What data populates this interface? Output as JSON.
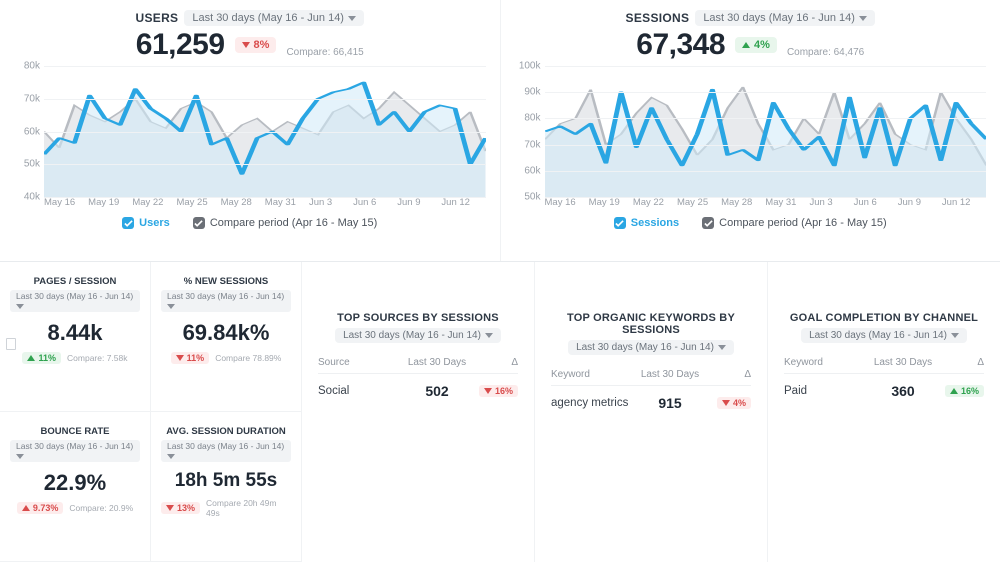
{
  "colors": {
    "primary": "#2aa6e3",
    "primary_fill": "#cfe9f7",
    "compare": "#b8bcc2",
    "compare_fill": "#e6e8eb",
    "grid": "#f0f2f4",
    "text_muted": "#9aa0a8",
    "pos": "#2fa24f",
    "neg": "#d94c4c"
  },
  "range_label": "Last 30 days (May 16 - Jun 14)",
  "compare_period_label": "Compare period (Apr 16 - May 15)",
  "charts": {
    "users": {
      "title": "USERS",
      "value": "61,259",
      "delta_pct": "8%",
      "delta_dir": "down",
      "compare_label": "Compare: 66,415",
      "legend_primary": "Users",
      "y_ticks": [
        "40k",
        "50k",
        "60k",
        "70k",
        "80k"
      ],
      "y_min": 40000,
      "y_max": 80000,
      "x_ticks": [
        "May 16",
        "May 19",
        "May 22",
        "May 25",
        "May 28",
        "May 31",
        "Jun 3",
        "Jun 6",
        "Jun 9",
        "Jun 12"
      ],
      "primary_series": [
        53000,
        58000,
        56500,
        71000,
        64000,
        62000,
        73000,
        67000,
        64000,
        60000,
        71000,
        56000,
        58000,
        47000,
        58000,
        60000,
        56000,
        64000,
        70000,
        72000,
        73000,
        75000,
        62000,
        66000,
        60000,
        66000,
        68000,
        67000,
        50000,
        58000
      ],
      "compare_series": [
        60000,
        55000,
        68000,
        65000,
        63000,
        66000,
        70000,
        63000,
        61000,
        67000,
        69000,
        66000,
        58000,
        62000,
        64000,
        60000,
        63000,
        61000,
        59000,
        66000,
        68000,
        64000,
        67000,
        72000,
        68000,
        64000,
        60000,
        62000,
        66000,
        54000
      ]
    },
    "sessions": {
      "title": "SESSIONS",
      "value": "67,348",
      "delta_pct": "4%",
      "delta_dir": "up",
      "compare_label": "Compare: 64,476",
      "legend_primary": "Sessions",
      "y_ticks": [
        "50k",
        "60k",
        "70k",
        "80k",
        "90k",
        "100k"
      ],
      "y_min": 50000,
      "y_max": 100000,
      "x_ticks": [
        "May 16",
        "May 19",
        "May 22",
        "May 25",
        "May 28",
        "May 31",
        "Jun 3",
        "Jun 6",
        "Jun 9",
        "Jun 12"
      ],
      "primary_series": [
        75000,
        77000,
        74000,
        78000,
        63000,
        90000,
        69000,
        84000,
        72000,
        62000,
        74000,
        91000,
        66000,
        68000,
        64000,
        86000,
        76000,
        68000,
        73000,
        62000,
        88000,
        65000,
        84000,
        62000,
        80000,
        85000,
        64000,
        86000,
        78000,
        72000
      ],
      "compare_series": [
        72000,
        78000,
        80000,
        91000,
        70000,
        74000,
        82000,
        88000,
        85000,
        76000,
        66000,
        72000,
        84000,
        92000,
        78000,
        68000,
        70000,
        80000,
        74000,
        90000,
        72000,
        78000,
        86000,
        74000,
        70000,
        68000,
        90000,
        80000,
        72000,
        62000
      ]
    }
  },
  "small_cards": {
    "pages_per_session": {
      "title": "PAGES / SESSION",
      "range": "Last 30 days (May 16 - Jun 14)",
      "value": "8.44k",
      "delta": "11%",
      "delta_dir": "up",
      "compare": "Compare: 7.58k"
    },
    "new_sessions": {
      "title": "% NEW SESSIONS",
      "range": "Last 30 days (May 16 - Jun 14)",
      "value": "69.84k%",
      "delta": "11%",
      "delta_dir": "down",
      "compare": "Compare 78.89%"
    },
    "bounce_rate": {
      "title": "BOUNCE RATE",
      "range": "Last 30 days (May 16 - Jun 14)",
      "value": "22.9%",
      "delta": "9.73%",
      "delta_dir": "up_neg",
      "compare": "Compare: 20.9%"
    },
    "avg_session_duration": {
      "title": "AVG. SESSION DURATION",
      "range": "Last 30 days (May 16 - Jun 14)",
      "value": "18h 5m 55s",
      "delta": "13%",
      "delta_dir": "down",
      "compare": "Compare 20h 49m 49s"
    }
  },
  "lists": {
    "top_sources": {
      "title": "TOP SOURCES BY SESSIONS",
      "range": "Last 30 days (May 16 - Jun 14)",
      "col_key": "Source",
      "col_mid": "Last 30 Days",
      "col_delta": "Δ",
      "rows": [
        {
          "key": "Social",
          "value": "502",
          "delta": "16%",
          "dir": "down"
        }
      ]
    },
    "top_keywords": {
      "title": "TOP ORGANIC KEYWORDS BY SESSIONS",
      "range": "Last 30 days (May 16 - Jun 14)",
      "col_key": "Keyword",
      "col_mid": "Last 30 Days",
      "col_delta": "Δ",
      "rows": [
        {
          "key": "agency metrics",
          "value": "915",
          "delta": "4%",
          "dir": "down"
        }
      ]
    },
    "goal_completion": {
      "title": "GOAL COMPLETION BY CHANNEL",
      "range": "Last 30 days (May 16 - Jun 14)",
      "col_key": "Keyword",
      "col_mid": "Last 30 Days",
      "col_delta": "Δ",
      "rows": [
        {
          "key": "Paid",
          "value": "360",
          "delta": "16%",
          "dir": "up"
        }
      ]
    }
  }
}
